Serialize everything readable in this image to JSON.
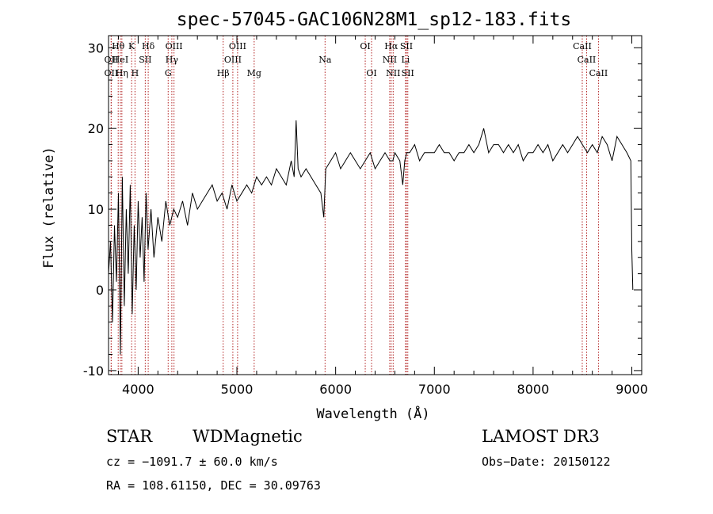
{
  "chart_data": {
    "type": "line",
    "title": "spec-57045-GAC106N28M1_sp12-183.fits",
    "xlabel": "Wavelength (Å)",
    "ylabel": "Flux (relative)",
    "xlim": [
      3700,
      9100
    ],
    "ylim": [
      -10.5,
      31.5
    ],
    "xticks": [
      4000,
      5000,
      6000,
      7000,
      8000,
      9000
    ],
    "yticks": [
      -10,
      0,
      10,
      20,
      30
    ],
    "xtick_labels": [
      "4000",
      "5000",
      "6000",
      "7000",
      "8000",
      "9000"
    ],
    "ytick_labels": [
      "-10",
      "0",
      "10",
      "20",
      "30"
    ],
    "line_color": "#000000",
    "marker_color": "#b22222",
    "spectrum": {
      "x": [
        3700,
        3720,
        3740,
        3760,
        3780,
        3800,
        3820,
        3840,
        3860,
        3880,
        3900,
        3920,
        3940,
        3960,
        3980,
        4000,
        4020,
        4040,
        4060,
        4080,
        4100,
        4130,
        4160,
        4200,
        4240,
        4280,
        4320,
        4360,
        4400,
        4450,
        4500,
        4550,
        4600,
        4650,
        4700,
        4750,
        4800,
        4850,
        4900,
        4950,
        5000,
        5050,
        5100,
        5150,
        5200,
        5250,
        5300,
        5350,
        5400,
        5450,
        5500,
        5550,
        5580,
        5600,
        5620,
        5650,
        5700,
        5750,
        5800,
        5850,
        5880,
        5900,
        5950,
        6000,
        6050,
        6100,
        6150,
        6200,
        6250,
        6300,
        6350,
        6400,
        6450,
        6500,
        6550,
        6580,
        6600,
        6650,
        6680,
        6700,
        6720,
        6750,
        6800,
        6850,
        6900,
        6950,
        7000,
        7050,
        7100,
        7150,
        7200,
        7250,
        7300,
        7350,
        7400,
        7450,
        7500,
        7550,
        7600,
        7650,
        7700,
        7750,
        7800,
        7850,
        7900,
        7950,
        8000,
        8050,
        8100,
        8150,
        8200,
        8250,
        8300,
        8350,
        8400,
        8450,
        8500,
        8550,
        8600,
        8650,
        8700,
        8750,
        8800,
        8850,
        8900,
        8950,
        8990,
        9000,
        9010
      ],
      "y": [
        2,
        6,
        -4,
        8,
        1,
        12,
        -8,
        14,
        -2,
        10,
        2,
        13,
        -3,
        8,
        0,
        11,
        4,
        9,
        1,
        12,
        5,
        10,
        4,
        9,
        6,
        11,
        8,
        10,
        9,
        11,
        8,
        12,
        10,
        11,
        12,
        13,
        11,
        12,
        10,
        13,
        11,
        12,
        13,
        12,
        14,
        13,
        14,
        13,
        15,
        14,
        13,
        16,
        14,
        21,
        15,
        14,
        15,
        14,
        13,
        12,
        9,
        15,
        16,
        17,
        15,
        16,
        17,
        16,
        15,
        16,
        17,
        15,
        16,
        17,
        16,
        16,
        17,
        16,
        13,
        16,
        17,
        17,
        18,
        16,
        17,
        17,
        17,
        18,
        17,
        17,
        16,
        17,
        17,
        18,
        17,
        18,
        20,
        17,
        18,
        18,
        17,
        18,
        17,
        18,
        16,
        17,
        17,
        18,
        17,
        18,
        16,
        17,
        18,
        17,
        18,
        19,
        18,
        17,
        18,
        17,
        19,
        18,
        16,
        19,
        18,
        17,
        16,
        5,
        0
      ]
    },
    "lines": [
      {
        "label": "Hθ",
        "wl": 3798,
        "row": 1
      },
      {
        "label": "OII",
        "wl": 3727,
        "row": 2
      },
      {
        "label": "OII",
        "wl": 3727,
        "row": 3
      },
      {
        "label": "HeI",
        "wl": 3820,
        "row": 2
      },
      {
        "label": "Hη",
        "wl": 3835,
        "row": 3
      },
      {
        "label": "K",
        "wl": 3934,
        "row": 1
      },
      {
        "label": "SII",
        "wl": 4072,
        "row": 2
      },
      {
        "label": "H",
        "wl": 3968,
        "row": 3
      },
      {
        "label": "Hδ",
        "wl": 4102,
        "row": 1
      },
      {
        "label": "OIII",
        "wl": 4363,
        "row": 1
      },
      {
        "label": "Hγ",
        "wl": 4341,
        "row": 2
      },
      {
        "label": "G",
        "wl": 4304,
        "row": 3
      },
      {
        "label": "OIII",
        "wl": 5007,
        "row": 1
      },
      {
        "label": "OIII",
        "wl": 4959,
        "row": 2
      },
      {
        "label": "Hβ",
        "wl": 4861,
        "row": 3
      },
      {
        "label": "Mg",
        "wl": 5175,
        "row": 3
      },
      {
        "label": "Na",
        "wl": 5893,
        "row": 2
      },
      {
        "label": "OI",
        "wl": 6300,
        "row": 1
      },
      {
        "label": "OI",
        "wl": 6364,
        "row": 3
      },
      {
        "label": "Hα",
        "wl": 6563,
        "row": 1
      },
      {
        "label": "NII",
        "wl": 6548,
        "row": 2
      },
      {
        "label": "NII",
        "wl": 6583,
        "row": 3
      },
      {
        "label": "SII",
        "wl": 6717,
        "row": 1
      },
      {
        "label": "Li",
        "wl": 6708,
        "row": 2
      },
      {
        "label": "SII",
        "wl": 6731,
        "row": 3
      },
      {
        "label": "CaII",
        "wl": 8498,
        "row": 1
      },
      {
        "label": "CaII",
        "wl": 8542,
        "row": 2
      },
      {
        "label": "CaII",
        "wl": 8662,
        "row": 3
      }
    ]
  },
  "info": {
    "class": "STAR",
    "subclass": "WDMagnetic",
    "survey": "LAMOST DR3",
    "cz": "cz = −1091.7 ± 60.0 km/s",
    "obs_date": "Obs−Date: 20150122",
    "radec": "RA = 108.61150, DEC =  30.09763"
  }
}
